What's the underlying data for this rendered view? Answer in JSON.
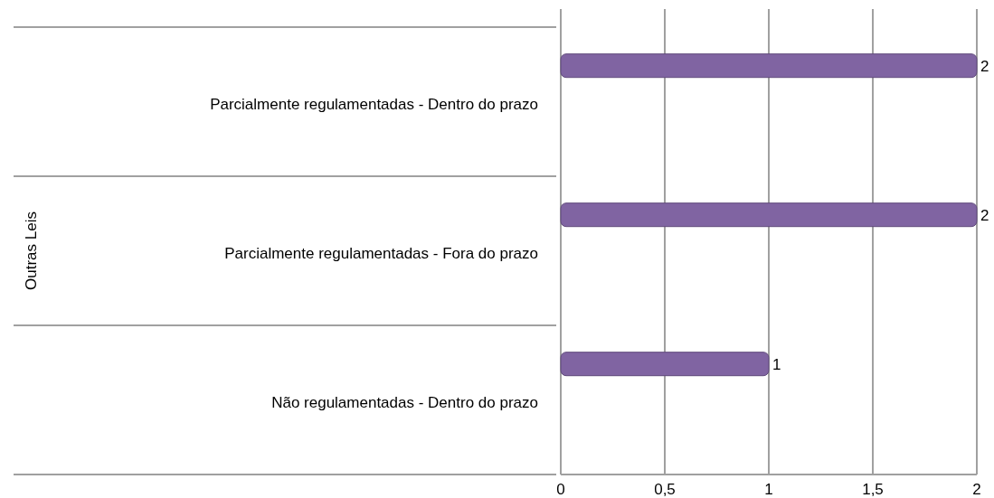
{
  "chart_data": {
    "type": "bar",
    "orientation": "horizontal",
    "annotations": [
      "Outras Leis"
    ],
    "categories": [
      "Parcialmente regulamentadas - Dentro do prazo",
      "Parcialmente regulamentadas - Fora do prazo",
      "Não regulamentadas - Dentro do prazo"
    ],
    "values": [
      2,
      2,
      1
    ],
    "color": "#8064a2",
    "xlim": [
      0,
      2
    ],
    "xticks": [
      0,
      {
        "value": 0.5,
        "label": "0,5"
      },
      1,
      {
        "value": 1.5,
        "label": "1,5"
      },
      2
    ],
    "grid": "x",
    "data_labels": true
  }
}
